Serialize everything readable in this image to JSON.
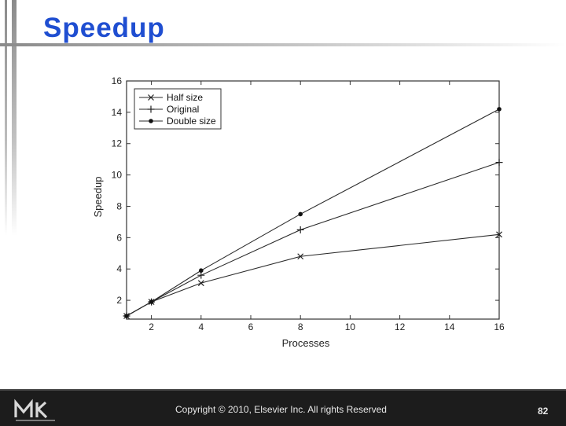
{
  "slide": {
    "title": "Speedup",
    "copyright": "Copyright © 2010, Elsevier Inc. All rights Reserved",
    "page_number": "82",
    "title_color": "#1f4ed1",
    "footer_color": "#1c1c1c",
    "logo_icon": "mk-logo-icon"
  },
  "chart_data": {
    "type": "line",
    "title": "",
    "xlabel": "Processes",
    "ylabel": "Speedup",
    "xlim": [
      1,
      16
    ],
    "ylim": [
      0.8,
      16
    ],
    "x_ticks": [
      2,
      4,
      6,
      8,
      10,
      12,
      14,
      16
    ],
    "y_ticks": [
      2,
      4,
      6,
      8,
      10,
      12,
      14,
      16
    ],
    "grid": false,
    "legend_position": "top-left",
    "series": [
      {
        "name": "Half size",
        "marker": "x",
        "x": [
          1,
          2,
          4,
          8,
          16
        ],
        "y": [
          1,
          1.9,
          3.1,
          4.8,
          6.2
        ]
      },
      {
        "name": "Original",
        "marker": "plus",
        "x": [
          1,
          2,
          4,
          8,
          16
        ],
        "y": [
          1,
          1.9,
          3.6,
          6.5,
          10.8
        ]
      },
      {
        "name": "Double size",
        "marker": "dot",
        "x": [
          1,
          2,
          4,
          8,
          16
        ],
        "y": [
          1,
          1.9,
          3.9,
          7.5,
          14.2
        ]
      }
    ]
  }
}
